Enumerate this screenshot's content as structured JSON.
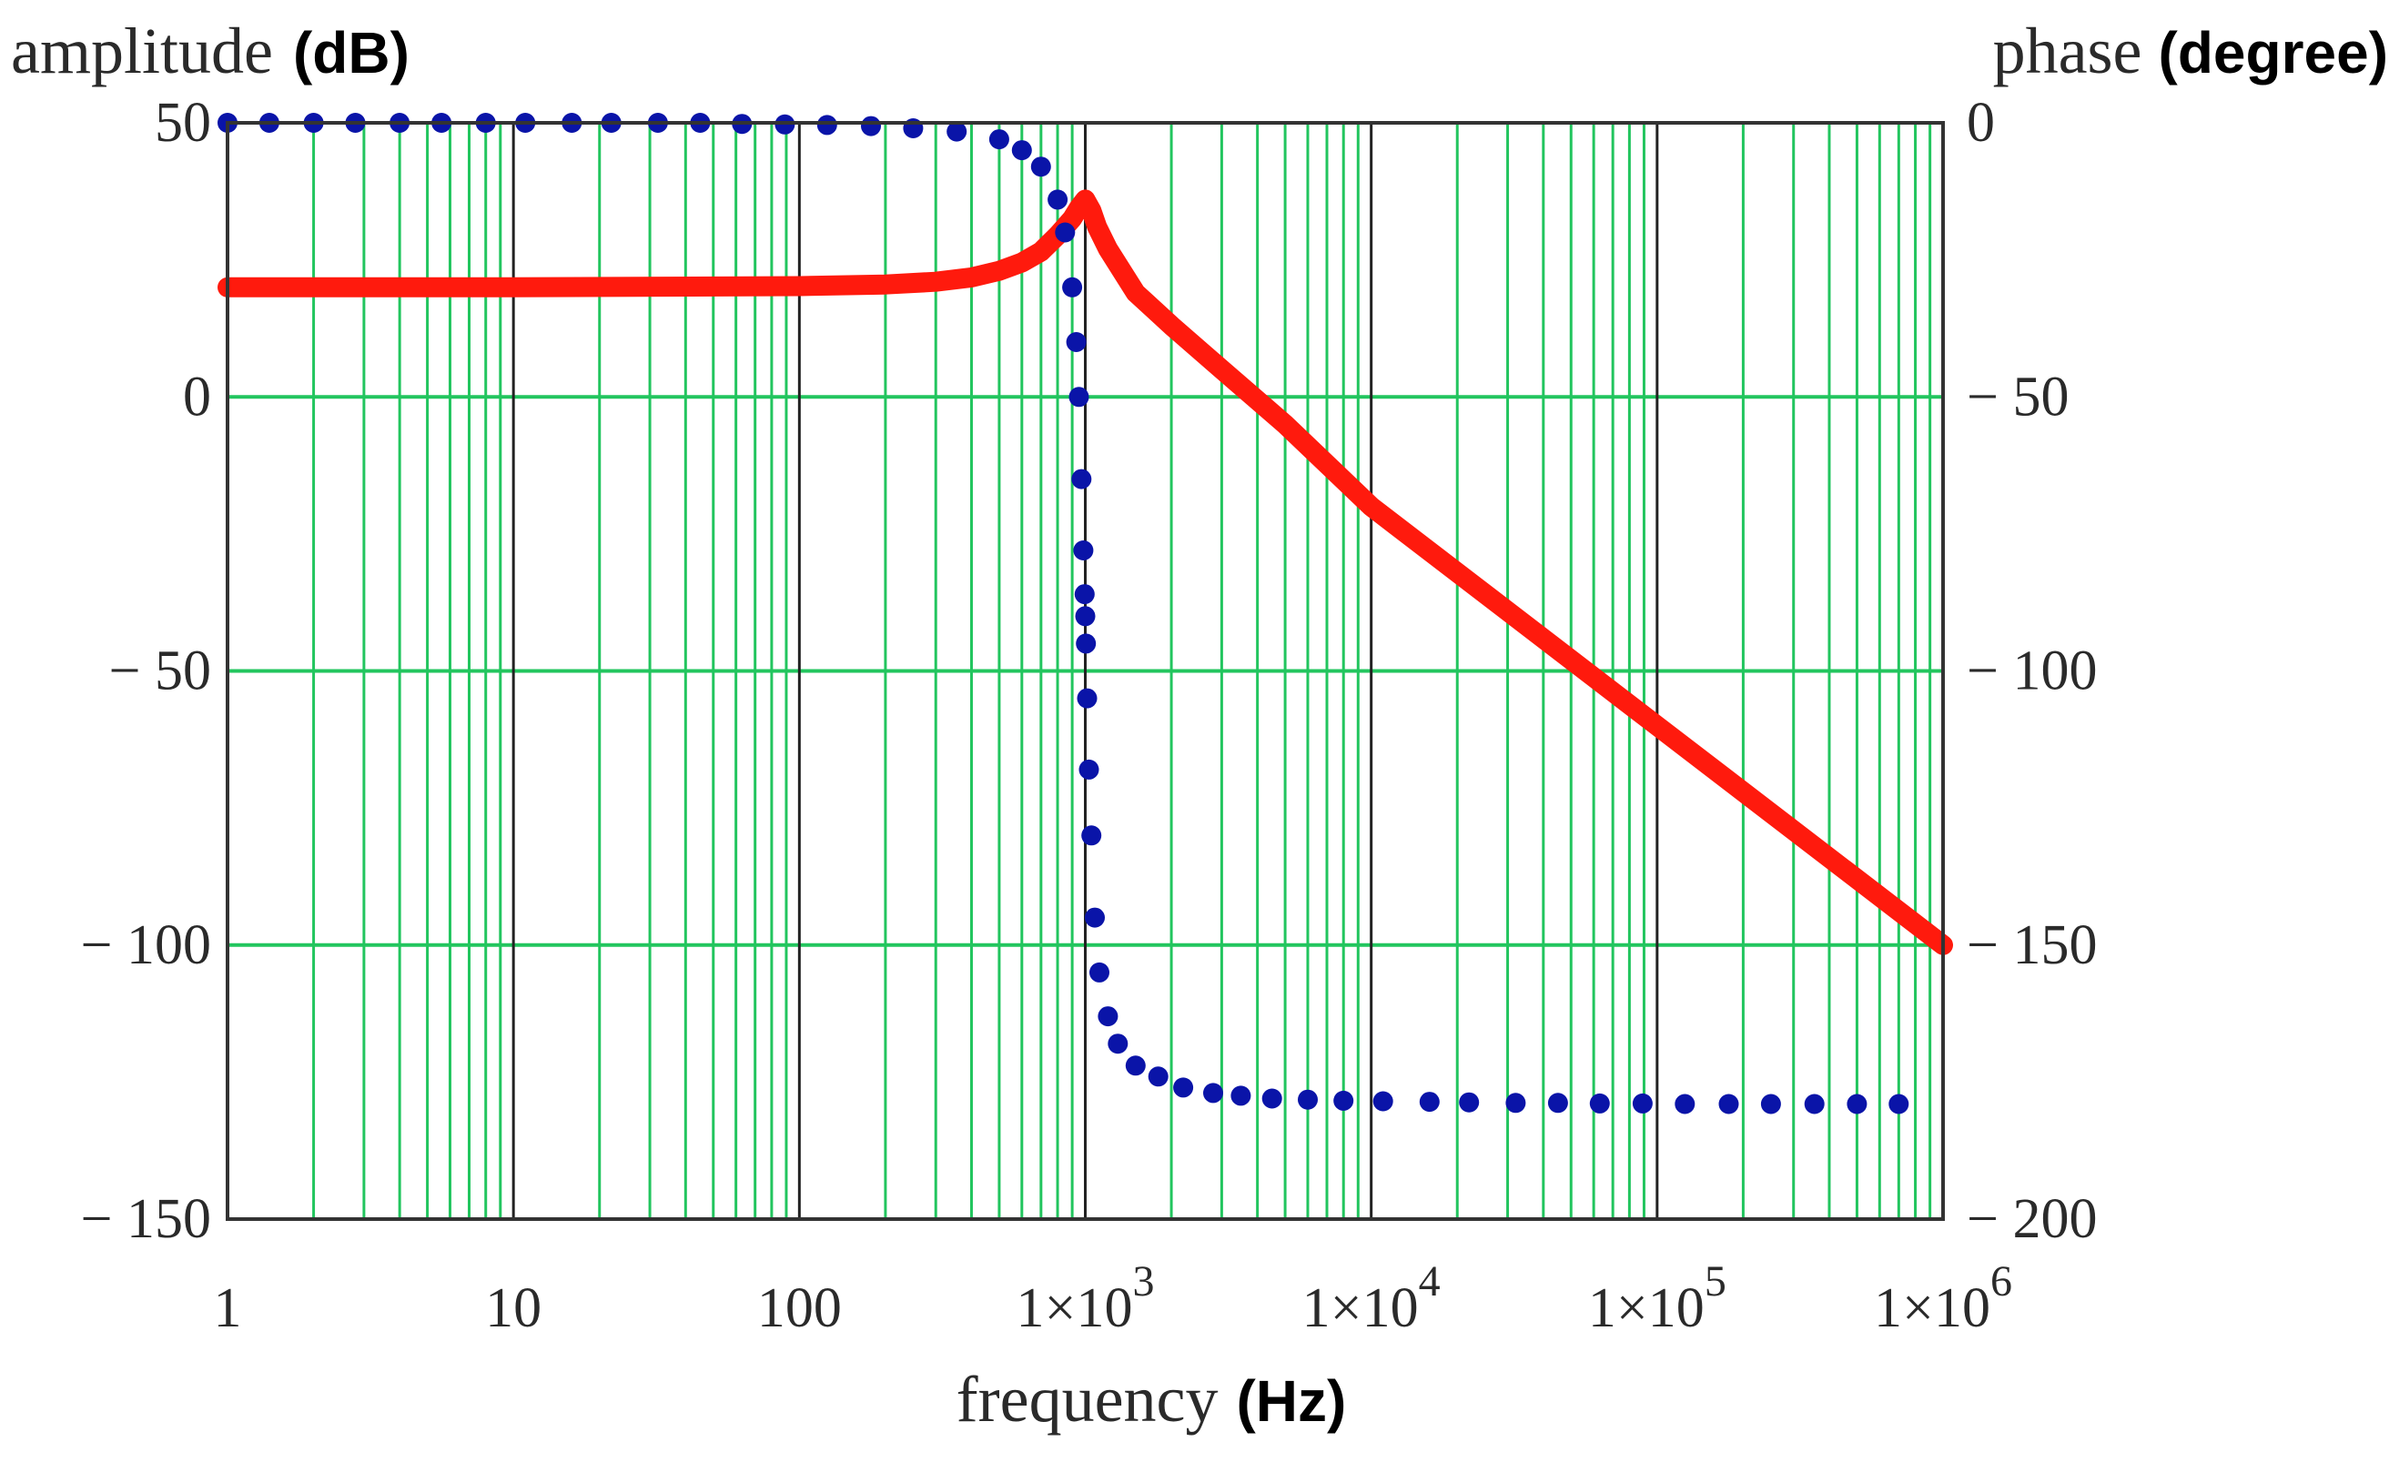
{
  "chart_data": {
    "type": "line",
    "x_scale": "log",
    "xlim": [
      1,
      1000000
    ],
    "x_ticks": [
      {
        "value": 1,
        "label": "1"
      },
      {
        "value": 10,
        "label": "10"
      },
      {
        "value": 100,
        "label": "100"
      },
      {
        "value": 1000,
        "mant": "1×10",
        "exp": "3"
      },
      {
        "value": 10000,
        "mant": "1×10",
        "exp": "4"
      },
      {
        "value": 100000,
        "mant": "1×10",
        "exp": "5"
      },
      {
        "value": 1000000,
        "mant": "1×10",
        "exp": "6"
      }
    ],
    "xlabel": {
      "text": "frequency",
      "unit": "(Hz)"
    },
    "left_axis": {
      "label": {
        "text": "amplitude",
        "unit": "(dB)"
      },
      "ylim": [
        -150,
        50
      ],
      "ticks": [
        {
          "value": 50,
          "label": "50"
        },
        {
          "value": 0,
          "label": "0"
        },
        {
          "value": -50,
          "label": "− 50"
        },
        {
          "value": -100,
          "label": "− 100"
        },
        {
          "value": -150,
          "label": "− 150"
        }
      ]
    },
    "right_axis": {
      "label": {
        "text": "phase",
        "unit": "(degree)"
      },
      "ylim": [
        -200,
        0
      ],
      "ticks": [
        {
          "value": 0,
          "label": "0"
        },
        {
          "value": -50,
          "label": "− 50"
        },
        {
          "value": -100,
          "label": "− 100"
        },
        {
          "value": -150,
          "label": "− 150"
        },
        {
          "value": -200,
          "label": "− 200"
        }
      ]
    },
    "grid": true,
    "colors": {
      "amplitude": "#ff1a0d",
      "phase": "#0a14a8",
      "grid_minor": "#22c55e",
      "grid_major": "#222222"
    },
    "series": [
      {
        "name": "amplitude",
        "axis": "left",
        "style": "solid",
        "x": [
          1,
          10,
          100,
          200,
          300,
          400,
          500,
          600,
          700,
          800,
          900,
          950,
          1000,
          1050,
          1100,
          1200,
          1500,
          2000,
          3000,
          5000,
          10000,
          100000,
          1000000
        ],
        "y": [
          20,
          20,
          20.2,
          20.5,
          21,
          21.8,
          23,
          24.5,
          26.5,
          29.5,
          32.5,
          34.5,
          36,
          34,
          31,
          27,
          19,
          13,
          5,
          -5,
          -20,
          -60,
          -100
        ]
      },
      {
        "name": "phase",
        "axis": "right",
        "style": "dotted",
        "x": [
          1,
          1.4,
          2,
          2.8,
          4,
          5.6,
          8,
          11,
          16,
          22,
          32,
          45,
          63,
          89,
          125,
          178,
          250,
          355,
          500,
          600,
          700,
          800,
          850,
          900,
          930,
          950,
          970,
          985,
          995,
          1000,
          1005,
          1015,
          1030,
          1050,
          1080,
          1120,
          1200,
          1300,
          1500,
          1800,
          2200,
          2800,
          3500,
          4500,
          6000,
          8000,
          11000,
          16000,
          22000,
          32000,
          45000,
          63000,
          89000,
          125000,
          178000,
          250000,
          355000,
          500000,
          700000
        ],
        "y": [
          0,
          0,
          0,
          0,
          0,
          0,
          0,
          0,
          0,
          0,
          0,
          0,
          -0.2,
          -0.3,
          -0.4,
          -0.6,
          -1,
          -1.6,
          -3,
          -5,
          -8,
          -14,
          -20,
          -30,
          -40,
          -50,
          -65,
          -78,
          -86,
          -90,
          -95,
          -105,
          -118,
          -130,
          -145,
          -155,
          -163,
          -168,
          -172,
          -174,
          -176,
          -177,
          -177.5,
          -178,
          -178.2,
          -178.4,
          -178.5,
          -178.6,
          -178.7,
          -178.8,
          -178.8,
          -178.9,
          -178.9,
          -179,
          -179,
          -179,
          -179,
          -179,
          -179
        ]
      }
    ]
  }
}
